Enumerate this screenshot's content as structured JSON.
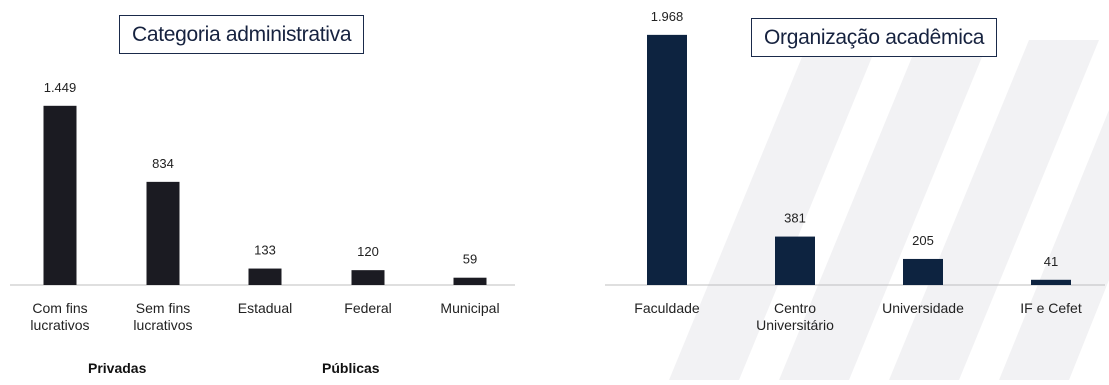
{
  "chart_data": [
    {
      "type": "bar",
      "title": "Categoria administrativa",
      "categories": [
        "Com fins\nlucrativos",
        "Sem fins\nlucrativos",
        "Estadual",
        "Federal",
        "Municipal"
      ],
      "values": [
        1449,
        834,
        133,
        120,
        59
      ],
      "value_labels": [
        "1.449",
        "834",
        "133",
        "120",
        "59"
      ],
      "groups": [
        {
          "label": "Privadas",
          "categories": [
            0,
            1
          ]
        },
        {
          "label": "Públicas",
          "categories": [
            2,
            3,
            4
          ]
        }
      ],
      "color": "#1b1b22",
      "ylim": [
        0,
        1500
      ],
      "grid": false
    },
    {
      "type": "bar",
      "title": "Organização acadêmica",
      "categories": [
        "Faculdade",
        "Centro\nUniversitário",
        "Universidade",
        "IF e Cefet"
      ],
      "values": [
        1968,
        381,
        205,
        41
      ],
      "value_labels": [
        "1.968",
        "381",
        "205",
        "41"
      ],
      "color": "#0d2340",
      "ylim": [
        0,
        2000
      ],
      "grid": false
    }
  ]
}
